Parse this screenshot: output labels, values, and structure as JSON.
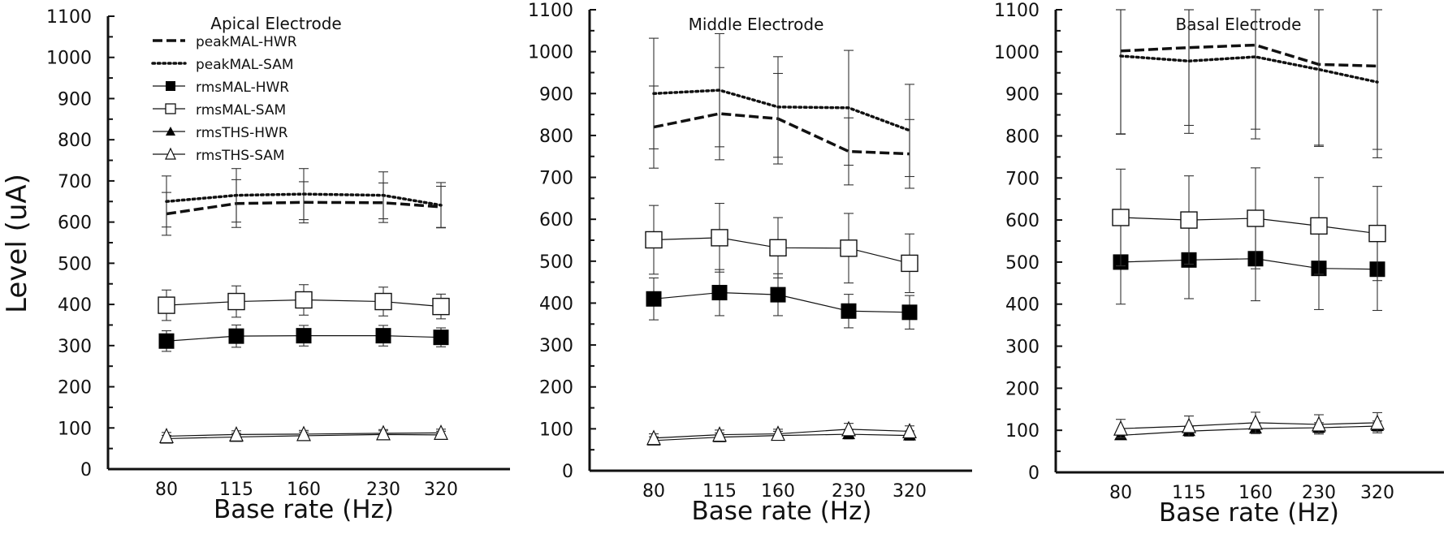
{
  "figure": {
    "ylabel": "Level (uA)"
  },
  "chart_data": [
    {
      "type": "line",
      "title": "Apical Electrode",
      "xlabel": "Base rate (Hz)",
      "ylabel": "Level (uA)",
      "categories": [
        "80",
        "115",
        "160",
        "230",
        "320"
      ],
      "ylim": [
        0,
        1100
      ],
      "yticks": [
        0,
        100,
        200,
        300,
        400,
        500,
        600,
        700,
        800,
        900,
        1000,
        1100
      ],
      "legend": "top-left",
      "series": [
        {
          "name": "peakMAL-HWR",
          "style": "dashed",
          "marker": "none",
          "values": [
            620,
            645,
            648,
            647,
            637
          ],
          "sd": [
            52,
            58,
            50,
            48,
            50
          ]
        },
        {
          "name": "peakMAL-SAM",
          "style": "dotted",
          "marker": "none",
          "values": [
            650,
            665,
            668,
            665,
            641
          ],
          "sd": [
            62,
            65,
            62,
            57,
            55
          ]
        },
        {
          "name": "rmsMAL-HWR",
          "style": "solid",
          "marker": "filled-square",
          "values": [
            311,
            323,
            324,
            324,
            320
          ],
          "sd": [
            25,
            27,
            25,
            25,
            23
          ]
        },
        {
          "name": "rmsMAL-SAM",
          "style": "solid",
          "marker": "open-square",
          "values": [
            398,
            407,
            411,
            407,
            395
          ],
          "sd": [
            37,
            38,
            37,
            35,
            30
          ]
        },
        {
          "name": "rmsTHS-HWR",
          "style": "solid",
          "marker": "filled-triangle",
          "values": [
            74,
            78,
            81,
            84,
            83
          ],
          "sd": [
            8,
            9,
            9,
            9,
            9
          ]
        },
        {
          "name": "rmsTHS-SAM",
          "style": "solid",
          "marker": "open-triangle",
          "values": [
            80,
            84,
            85,
            87,
            88
          ],
          "sd": [
            9,
            9,
            9,
            9,
            9
          ]
        }
      ]
    },
    {
      "type": "line",
      "title": "Middle Electrode",
      "xlabel": "Base rate (Hz)",
      "categories": [
        "80",
        "115",
        "160",
        "230",
        "320"
      ],
      "ylim": [
        0,
        1100
      ],
      "yticks": [
        0,
        100,
        200,
        300,
        400,
        500,
        600,
        700,
        800,
        900,
        1000,
        1100
      ],
      "series": [
        {
          "name": "peakMAL-HWR",
          "style": "dashed",
          "marker": "none",
          "values": [
            820,
            852,
            840,
            762,
            756
          ],
          "sd": [
            98,
            110,
            108,
            80,
            82
          ]
        },
        {
          "name": "peakMAL-SAM",
          "style": "dotted",
          "marker": "none",
          "values": [
            900,
            908,
            868,
            866,
            812
          ],
          "sd": [
            132,
            135,
            120,
            137,
            110
          ]
        },
        {
          "name": "rmsMAL-HWR",
          "style": "solid",
          "marker": "filled-square",
          "values": [
            410,
            425,
            420,
            381,
            378
          ],
          "sd": [
            50,
            55,
            50,
            40,
            40
          ]
        },
        {
          "name": "rmsMAL-SAM",
          "style": "solid",
          "marker": "open-square",
          "values": [
            551,
            556,
            532,
            531,
            495
          ],
          "sd": [
            82,
            82,
            72,
            83,
            70
          ]
        },
        {
          "name": "rmsTHS-HWR",
          "style": "solid",
          "marker": "filled-triangle",
          "values": [
            72,
            80,
            84,
            87,
            84
          ],
          "sd": [
            9,
            10,
            10,
            11,
            11
          ]
        },
        {
          "name": "rmsTHS-SAM",
          "style": "solid",
          "marker": "open-triangle",
          "values": [
            78,
            86,
            88,
            99,
            94
          ],
          "sd": [
            10,
            11,
            11,
            14,
            13
          ]
        }
      ]
    },
    {
      "type": "line",
      "title": "Basal Electrode",
      "xlabel": "Base rate (Hz)",
      "categories": [
        "80",
        "115",
        "160",
        "230",
        "320"
      ],
      "ylim": [
        0,
        1100
      ],
      "yticks": [
        0,
        100,
        200,
        300,
        400,
        500,
        600,
        700,
        800,
        900,
        1000,
        1100
      ],
      "series": [
        {
          "name": "peakMAL-HWR",
          "style": "dashed",
          "marker": "none",
          "values": [
            1002,
            1010,
            1016,
            970,
            966
          ],
          "sd": [
            198,
            185,
            200,
            192,
            198
          ]
        },
        {
          "name": "peakMAL-SAM",
          "style": "dotted",
          "marker": "none",
          "values": [
            990,
            978,
            988,
            958,
            928
          ],
          "sd": [
            185,
            172,
            195,
            183,
            180
          ]
        },
        {
          "name": "rmsMAL-HWR",
          "style": "solid",
          "marker": "filled-square",
          "values": [
            500,
            505,
            508,
            485,
            483
          ],
          "sd": [
            100,
            92,
            100,
            98,
            98
          ]
        },
        {
          "name": "rmsMAL-SAM",
          "style": "solid",
          "marker": "open-square",
          "values": [
            606,
            600,
            604,
            586,
            568
          ],
          "sd": [
            115,
            105,
            120,
            115,
            112
          ]
        },
        {
          "name": "rmsTHS-HWR",
          "style": "solid",
          "marker": "filled-triangle",
          "values": [
            88,
            98,
            104,
            106,
            110
          ],
          "sd": [
            8,
            10,
            12,
            12,
            12
          ]
        },
        {
          "name": "rmsTHS-SAM",
          "style": "solid",
          "marker": "open-triangle",
          "values": [
            104,
            110,
            118,
            114,
            118
          ],
          "sd": [
            22,
            24,
            25,
            23,
            24
          ]
        }
      ]
    }
  ]
}
